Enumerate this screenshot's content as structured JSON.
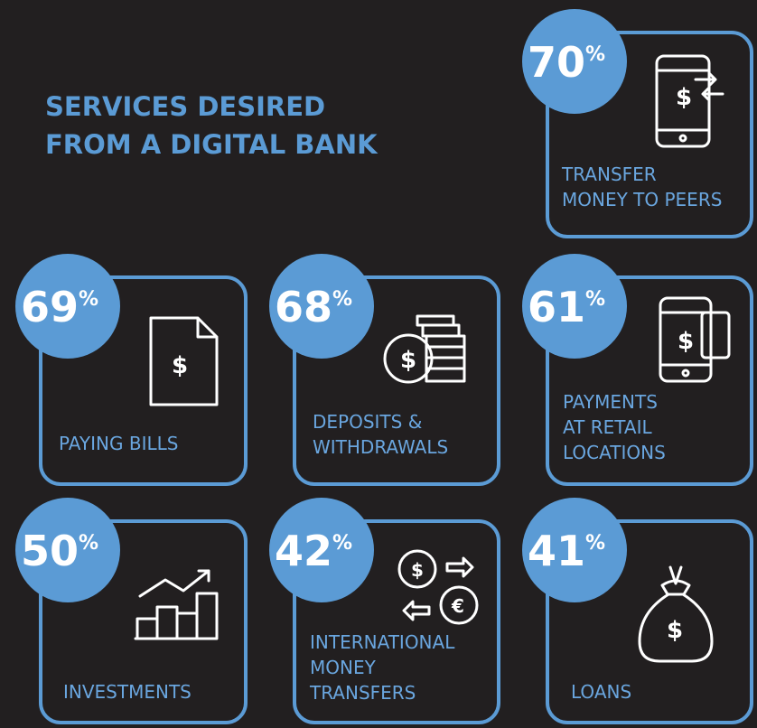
{
  "title": [
    "SERVICES DESIRED",
    "FROM A DIGITAL BANK"
  ],
  "items": [
    {
      "value": 70,
      "unit": "%",
      "label": [
        "TRANSFER",
        "MONEY TO PEERS"
      ]
    },
    {
      "value": 69,
      "unit": "%",
      "label": [
        "PAYING BILLS"
      ]
    },
    {
      "value": 68,
      "unit": "%",
      "label": [
        "DEPOSITS &",
        "WITHDRAWALS"
      ]
    },
    {
      "value": 61,
      "unit": "%",
      "label": [
        "PAYMENTS",
        "AT RETAIL",
        "LOCATIONS"
      ]
    },
    {
      "value": 50,
      "unit": "%",
      "label": [
        "INVESTMENTS"
      ]
    },
    {
      "value": 42,
      "unit": "%",
      "label": [
        "INTERNATIONAL",
        "MONEY",
        "TRANSFERS"
      ]
    },
    {
      "value": 41,
      "unit": "%",
      "label": [
        "LOANS"
      ]
    }
  ]
}
